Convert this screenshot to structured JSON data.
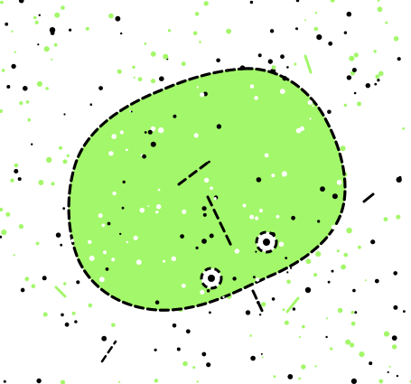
{
  "colors": {
    "background": "#ffffff",
    "blob_fill": "#a3f76a",
    "blob_outline": "#000000",
    "speck_green": "#a3f76a",
    "speck_black": "#000000",
    "ring_fill": "#ffffff",
    "inner_white_speck": "#ffffff"
  },
  "elements": {
    "blob": "green-blob",
    "rings": [
      "ring-marker",
      "ring-marker"
    ],
    "dashes": [
      "dash-stroke",
      "dash-stroke",
      "dash-stroke",
      "dash-stroke"
    ]
  }
}
